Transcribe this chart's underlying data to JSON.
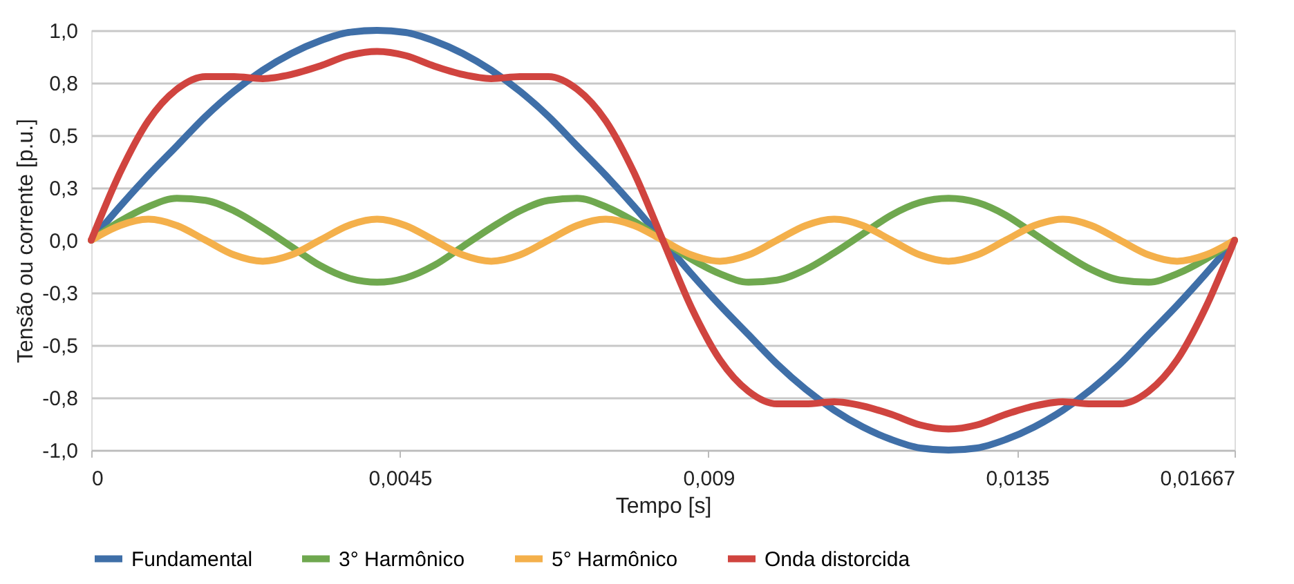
{
  "chart_data": {
    "type": "line",
    "xlabel": "Tempo [s]",
    "ylabel": "Tensão ou corrente [p.u.]",
    "x": [
      0,
      0.000417,
      0.000833,
      0.00125,
      0.001667,
      0.002083,
      0.0025,
      0.002917,
      0.003333,
      0.00375,
      0.004167,
      0.004583,
      0.005,
      0.005417,
      0.005833,
      0.00625,
      0.006667,
      0.007083,
      0.0075,
      0.007917,
      0.008333,
      0.00875,
      0.009167,
      0.009583,
      0.01,
      0.010417,
      0.010833,
      0.01125,
      0.011667,
      0.012083,
      0.0125,
      0.012917,
      0.013333,
      0.01375,
      0.014167,
      0.014583,
      0.015,
      0.015417,
      0.015833,
      0.01625,
      0.01667
    ],
    "series": [
      {
        "name": "Fundamental",
        "color": "#3f6fa8",
        "values": [
          0,
          0.16,
          0.31,
          0.45,
          0.59,
          0.71,
          0.81,
          0.89,
          0.95,
          0.99,
          1,
          0.99,
          0.95,
          0.89,
          0.81,
          0.71,
          0.59,
          0.45,
          0.31,
          0.16,
          0,
          -0.16,
          -0.31,
          -0.45,
          -0.59,
          -0.71,
          -0.81,
          -0.89,
          -0.95,
          -0.99,
          -1,
          -0.99,
          -0.95,
          -0.89,
          -0.81,
          -0.71,
          -0.59,
          -0.45,
          -0.31,
          -0.16,
          0
        ]
      },
      {
        "name": "3° Harmônico",
        "color": "#6fa84f",
        "values": [
          0,
          0.09,
          0.16,
          0.2,
          0.19,
          0.14,
          0.06,
          -0.03,
          -0.12,
          -0.18,
          -0.2,
          -0.18,
          -0.12,
          -0.03,
          0.06,
          0.14,
          0.19,
          0.2,
          0.16,
          0.09,
          0,
          -0.09,
          -0.16,
          -0.2,
          -0.19,
          -0.14,
          -0.06,
          0.03,
          0.12,
          0.18,
          0.2,
          0.18,
          0.12,
          0.03,
          -0.06,
          -0.14,
          -0.19,
          -0.2,
          -0.16,
          -0.09,
          0
        ]
      },
      {
        "name": "5° Harmônico",
        "color": "#f4b04b",
        "values": [
          0,
          0.07,
          0.1,
          0.07,
          0,
          -0.07,
          -0.1,
          -0.07,
          0,
          0.07,
          0.1,
          0.07,
          0,
          -0.07,
          -0.1,
          -0.07,
          0,
          0.07,
          0.1,
          0.07,
          0,
          -0.07,
          -0.1,
          -0.07,
          0,
          0.07,
          0.1,
          0.07,
          0,
          -0.07,
          -0.1,
          -0.07,
          0,
          0.07,
          0.1,
          0.07,
          0,
          -0.07,
          -0.1,
          -0.07,
          0
        ]
      },
      {
        "name": "Onda distorcida",
        "color": "#d0443f",
        "values": [
          0,
          0.32,
          0.57,
          0.72,
          0.78,
          0.78,
          0.77,
          0.79,
          0.83,
          0.88,
          0.9,
          0.88,
          0.83,
          0.79,
          0.77,
          0.78,
          0.78,
          0.72,
          0.57,
          0.32,
          0,
          -0.32,
          -0.57,
          -0.72,
          -0.78,
          -0.78,
          -0.77,
          -0.79,
          -0.83,
          -0.88,
          -0.9,
          -0.88,
          -0.83,
          -0.79,
          -0.77,
          -0.78,
          -0.78,
          -0.72,
          -0.57,
          -0.32,
          0
        ]
      }
    ],
    "xlim": [
      0,
      0.01667
    ],
    "xticks": [
      0,
      {
        "value": 0.0045,
        "label": "0,0045"
      },
      {
        "value": 0.009,
        "label": "0,009"
      },
      {
        "value": 0.0135,
        "label": "0,0135"
      },
      {
        "value": 0.01667,
        "label": "0,01667"
      }
    ],
    "ylim": [
      -1,
      1
    ],
    "yticks": [
      {
        "value": -1,
        "label": "-1,0"
      },
      {
        "value": -0.75,
        "label": "-0,8"
      },
      {
        "value": -0.5,
        "label": "-0,5"
      },
      {
        "value": -0.25,
        "label": "-0,3"
      },
      {
        "value": 0,
        "label": "0,0"
      },
      {
        "value": 0.25,
        "label": "0,3"
      },
      {
        "value": 0.5,
        "label": "0,5"
      },
      {
        "value": 0.75,
        "label": "0,8"
      },
      {
        "value": 1,
        "label": "1,0"
      }
    ],
    "grid": "y",
    "legend": "bottom",
    "marker": "none",
    "line_style": "solid"
  }
}
